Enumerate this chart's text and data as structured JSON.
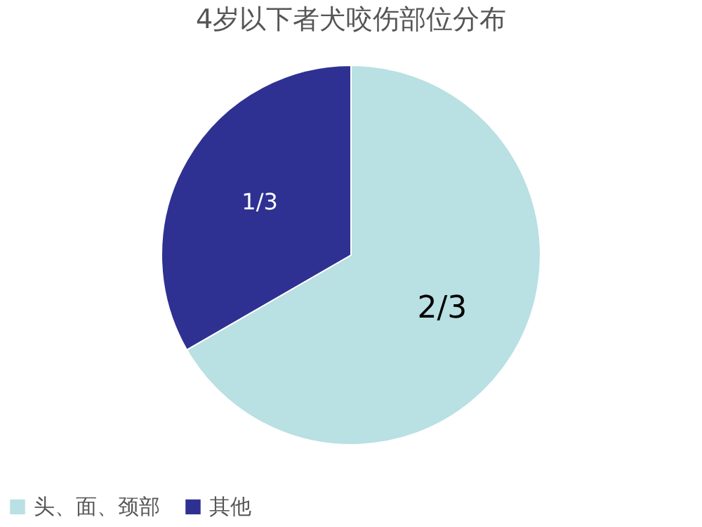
{
  "chart_data": {
    "type": "pie",
    "title": "4岁以下者犬咬伤部位分布",
    "categories": [
      "头、面、颈部",
      "其他"
    ],
    "values": [
      0.6667,
      0.3333
    ],
    "colors": [
      "#b9e0e3",
      "#2e3192"
    ],
    "value_labels": [
      "2/3",
      "1/3"
    ],
    "legend": "bottom"
  }
}
